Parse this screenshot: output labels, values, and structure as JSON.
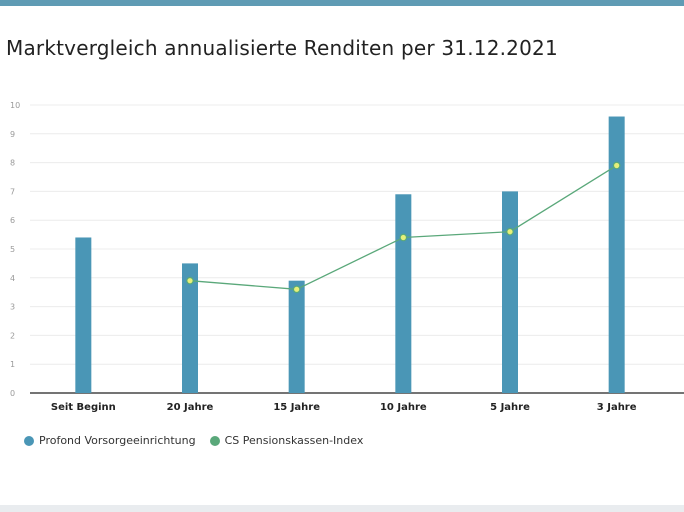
{
  "chart_data": {
    "type": "bar",
    "title": "Marktvergleich annualisierte Renditen per 31.12.2021",
    "categories": [
      "Seit Beginn",
      "20 Jahre",
      "15 Jahre",
      "10 Jahre",
      "5 Jahre",
      "3 Jahre"
    ],
    "series": [
      {
        "name": "Profond Vorsorgeeinrichtung",
        "type": "bar",
        "color": "#4a96b6",
        "values": [
          5.4,
          4.5,
          3.9,
          6.9,
          7.0,
          9.6
        ]
      },
      {
        "name": "CS Pensionskassen-Index",
        "type": "line",
        "color": "#5aa87a",
        "values": [
          null,
          3.9,
          3.6,
          5.4,
          5.6,
          7.9
        ]
      }
    ],
    "yticks": [
      "0",
      "1",
      "2",
      "3",
      "4",
      "5",
      "6",
      "7",
      "8",
      "9",
      "10"
    ],
    "ylim": [
      0,
      10
    ],
    "grid": true,
    "legend_position": "bottom-left"
  },
  "marker_fill": "#e6f07a"
}
